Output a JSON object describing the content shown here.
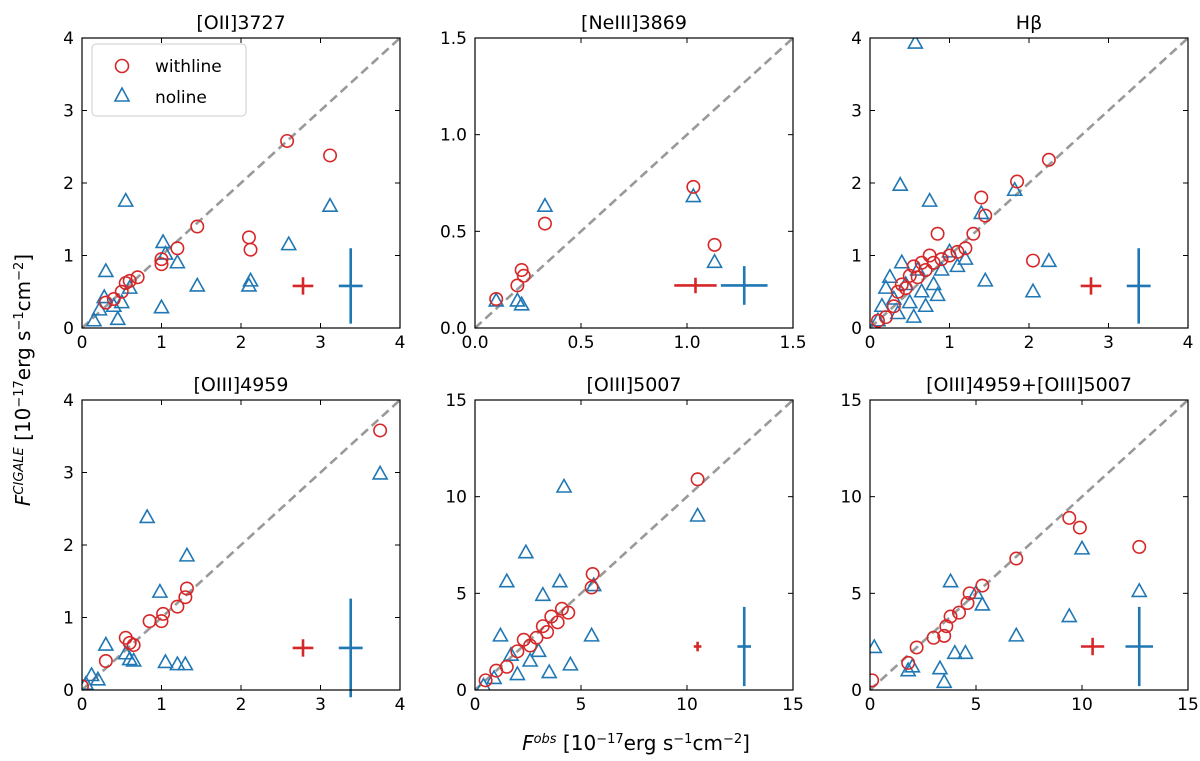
{
  "colors": {
    "withline": "#d62728",
    "noline": "#1f77b4",
    "diagonal": "#999999"
  },
  "chart_data": {
    "type": "scatter",
    "xlabel": {
      "symbol": "F",
      "sup": "obs",
      "rest": " [10",
      "exp": "−17",
      "units_a": "erg s",
      "units_exp1": "−1",
      "units_b": "cm",
      "units_exp2": "−2",
      "close": "]"
    },
    "ylabel": {
      "symbol": "F",
      "sup": "CIGALE",
      "rest": " [10",
      "exp": "−17",
      "units_a": "erg s",
      "units_exp1": "−1",
      "units_b": "cm",
      "units_exp2": "−2",
      "close": "]"
    },
    "legend": {
      "placement": "top-left",
      "entries": [
        {
          "label": "withline",
          "marker": "circle"
        },
        {
          "label": "noline",
          "marker": "triangle"
        }
      ]
    },
    "panels": [
      {
        "title": "[OII]3727",
        "xlim": [
          0,
          4
        ],
        "ylim": [
          0,
          4
        ],
        "xticks": [
          0,
          1,
          2,
          3,
          4
        ],
        "yticks": [
          0,
          1,
          2,
          3,
          4
        ],
        "xtick_labels": [
          "0",
          "1",
          "2",
          "3",
          "4"
        ],
        "ytick_labels": [
          "0",
          "1",
          "2",
          "3",
          "4"
        ],
        "withline": [
          [
            0.3,
            0.35
          ],
          [
            0.4,
            0.4
          ],
          [
            0.5,
            0.5
          ],
          [
            0.55,
            0.62
          ],
          [
            0.6,
            0.65
          ],
          [
            0.7,
            0.7
          ],
          [
            1.0,
            0.95
          ],
          [
            1.0,
            0.88
          ],
          [
            1.2,
            1.1
          ],
          [
            1.45,
            1.4
          ],
          [
            2.1,
            1.25
          ],
          [
            2.12,
            1.08
          ],
          [
            2.58,
            2.58
          ],
          [
            3.12,
            2.38
          ]
        ],
        "noline": [
          [
            0.15,
            0.1
          ],
          [
            0.22,
            0.25
          ],
          [
            0.28,
            0.42
          ],
          [
            0.3,
            0.78
          ],
          [
            0.4,
            0.3
          ],
          [
            0.45,
            0.12
          ],
          [
            0.5,
            0.35
          ],
          [
            0.55,
            1.75
          ],
          [
            0.6,
            0.55
          ],
          [
            1.0,
            0.28
          ],
          [
            1.02,
            1.18
          ],
          [
            1.05,
            1.02
          ],
          [
            1.2,
            0.9
          ],
          [
            1.45,
            0.58
          ],
          [
            2.1,
            0.58
          ],
          [
            2.12,
            0.65
          ],
          [
            2.6,
            1.15
          ],
          [
            3.12,
            1.68
          ]
        ],
        "errbar_withline": {
          "x": 2.78,
          "y": 0.58,
          "xerr": 0.13,
          "yerr": 0.12
        },
        "errbar_noline": {
          "x": 3.38,
          "y": 0.58,
          "xerr": 0.15,
          "yerr": 0.52
        }
      },
      {
        "title": "[NeIII]3869",
        "xlim": [
          0,
          1.5
        ],
        "ylim": [
          0,
          1.5
        ],
        "xticks": [
          0,
          0.5,
          1.0,
          1.5
        ],
        "yticks": [
          0,
          0.5,
          1.0,
          1.5
        ],
        "xtick_labels": [
          "0.0",
          "0.5",
          "1.0",
          "1.5"
        ],
        "ytick_labels": [
          "0.0",
          "0.5",
          "1.0",
          "1.5"
        ],
        "withline": [
          [
            0.1,
            0.15
          ],
          [
            0.2,
            0.22
          ],
          [
            0.22,
            0.3
          ],
          [
            0.23,
            0.27
          ],
          [
            0.33,
            0.54
          ],
          [
            1.03,
            0.73
          ],
          [
            1.13,
            0.43
          ]
        ],
        "noline": [
          [
            0.1,
            0.14
          ],
          [
            0.2,
            0.14
          ],
          [
            0.22,
            0.12
          ],
          [
            0.33,
            0.63
          ],
          [
            1.03,
            0.68
          ],
          [
            1.13,
            0.34
          ]
        ],
        "errbar_withline": {
          "x": 1.04,
          "y": 0.22,
          "xerr": 0.1,
          "yerr": 0.04
        },
        "errbar_noline": {
          "x": 1.27,
          "y": 0.22,
          "xerr": 0.11,
          "yerr": 0.1
        }
      },
      {
        "title": "Hβ",
        "xlim": [
          0,
          4
        ],
        "ylim": [
          0,
          4
        ],
        "xticks": [
          0,
          1,
          2,
          3,
          4
        ],
        "yticks": [
          0,
          1,
          2,
          3,
          4
        ],
        "xtick_labels": [
          "0",
          "1",
          "2",
          "3",
          "4"
        ],
        "ytick_labels": [
          "0",
          "1",
          "2",
          "3",
          "4"
        ],
        "withline": [
          [
            0.1,
            0.1
          ],
          [
            0.2,
            0.15
          ],
          [
            0.3,
            0.3
          ],
          [
            0.35,
            0.5
          ],
          [
            0.4,
            0.6
          ],
          [
            0.45,
            0.55
          ],
          [
            0.5,
            0.72
          ],
          [
            0.55,
            0.85
          ],
          [
            0.6,
            0.7
          ],
          [
            0.65,
            0.9
          ],
          [
            0.7,
            0.8
          ],
          [
            0.75,
            1.0
          ],
          [
            0.8,
            0.9
          ],
          [
            0.85,
            1.3
          ],
          [
            0.9,
            0.95
          ],
          [
            1.0,
            1.0
          ],
          [
            1.1,
            1.05
          ],
          [
            1.2,
            1.1
          ],
          [
            1.3,
            1.3
          ],
          [
            1.4,
            1.8
          ],
          [
            1.45,
            1.55
          ],
          [
            1.85,
            2.02
          ],
          [
            2.05,
            0.93
          ],
          [
            2.25,
            2.32
          ]
        ],
        "noline": [
          [
            0.1,
            0.1
          ],
          [
            0.15,
            0.3
          ],
          [
            0.2,
            0.55
          ],
          [
            0.25,
            0.7
          ],
          [
            0.3,
            0.4
          ],
          [
            0.35,
            0.2
          ],
          [
            0.38,
            1.97
          ],
          [
            0.4,
            0.9
          ],
          [
            0.45,
            0.6
          ],
          [
            0.5,
            0.35
          ],
          [
            0.55,
            0.15
          ],
          [
            0.57,
            3.93
          ],
          [
            0.6,
            0.8
          ],
          [
            0.65,
            0.5
          ],
          [
            0.7,
            0.3
          ],
          [
            0.75,
            1.75
          ],
          [
            0.8,
            0.6
          ],
          [
            0.85,
            0.45
          ],
          [
            0.9,
            0.8
          ],
          [
            1.0,
            1.05
          ],
          [
            1.1,
            0.85
          ],
          [
            1.2,
            0.95
          ],
          [
            1.4,
            1.58
          ],
          [
            1.45,
            0.65
          ],
          [
            1.82,
            1.9
          ],
          [
            2.05,
            0.5
          ],
          [
            2.25,
            0.92
          ]
        ],
        "errbar_withline": {
          "x": 2.78,
          "y": 0.58,
          "xerr": 0.13,
          "yerr": 0.12
        },
        "errbar_noline": {
          "x": 3.38,
          "y": 0.58,
          "xerr": 0.15,
          "yerr": 0.52
        }
      },
      {
        "title": "[OIII]4959",
        "xlim": [
          0,
          4
        ],
        "ylim": [
          0,
          4
        ],
        "xticks": [
          0,
          1,
          2,
          3,
          4
        ],
        "yticks": [
          0,
          1,
          2,
          3,
          4
        ],
        "xtick_labels": [
          "0",
          "1",
          "2",
          "3",
          "4"
        ],
        "ytick_labels": [
          "0",
          "1",
          "2",
          "3",
          "4"
        ],
        "withline": [
          [
            0.0,
            0.05
          ],
          [
            0.3,
            0.4
          ],
          [
            0.55,
            0.72
          ],
          [
            0.6,
            0.65
          ],
          [
            0.65,
            0.62
          ],
          [
            0.85,
            0.95
          ],
          [
            1.0,
            0.95
          ],
          [
            1.02,
            1.05
          ],
          [
            1.2,
            1.15
          ],
          [
            1.3,
            1.28
          ],
          [
            1.32,
            1.4
          ],
          [
            3.75,
            3.58
          ]
        ],
        "noline": [
          [
            0.05,
            0.08
          ],
          [
            0.12,
            0.2
          ],
          [
            0.2,
            0.14
          ],
          [
            0.3,
            0.62
          ],
          [
            0.55,
            0.5
          ],
          [
            0.6,
            0.42
          ],
          [
            0.65,
            0.4
          ],
          [
            0.82,
            2.38
          ],
          [
            0.98,
            1.35
          ],
          [
            1.05,
            0.38
          ],
          [
            1.2,
            0.35
          ],
          [
            1.3,
            0.35
          ],
          [
            1.32,
            1.85
          ],
          [
            3.75,
            2.98
          ]
        ],
        "errbar_withline": {
          "x": 2.78,
          "y": 0.58,
          "xerr": 0.13,
          "yerr": 0.12
        },
        "errbar_noline": {
          "x": 3.38,
          "y": 0.58,
          "xerr": 0.15,
          "yerr": 0.68
        }
      },
      {
        "title": "[OIII]5007",
        "xlim": [
          0,
          15
        ],
        "ylim": [
          0,
          15
        ],
        "xticks": [
          0,
          5,
          10,
          15
        ],
        "yticks": [
          0,
          5,
          10,
          15
        ],
        "xtick_labels": [
          "0",
          "5",
          "10",
          "15"
        ],
        "ytick_labels": [
          "0",
          "5",
          "10",
          "15"
        ],
        "withline": [
          [
            0.5,
            0.5
          ],
          [
            1.0,
            1.0
          ],
          [
            1.5,
            1.2
          ],
          [
            2.0,
            2.0
          ],
          [
            2.3,
            2.6
          ],
          [
            2.6,
            2.3
          ],
          [
            2.9,
            2.7
          ],
          [
            3.2,
            3.3
          ],
          [
            3.4,
            3.0
          ],
          [
            3.6,
            3.8
          ],
          [
            3.9,
            3.5
          ],
          [
            4.1,
            4.2
          ],
          [
            4.4,
            4.0
          ],
          [
            5.5,
            5.3
          ],
          [
            5.55,
            6.0
          ],
          [
            10.5,
            10.9
          ]
        ],
        "noline": [
          [
            0.4,
            0.2
          ],
          [
            0.9,
            0.6
          ],
          [
            1.2,
            2.8
          ],
          [
            1.5,
            5.6
          ],
          [
            1.7,
            1.8
          ],
          [
            2.0,
            0.8
          ],
          [
            2.4,
            7.1
          ],
          [
            2.6,
            1.5
          ],
          [
            3.0,
            2.0
          ],
          [
            3.2,
            4.9
          ],
          [
            3.5,
            0.9
          ],
          [
            4.0,
            5.6
          ],
          [
            4.2,
            10.5
          ],
          [
            4.5,
            1.3
          ],
          [
            5.5,
            2.8
          ],
          [
            5.6,
            5.4
          ],
          [
            10.5,
            9.0
          ]
        ],
        "errbar_withline": {
          "x": 10.5,
          "y": 2.25,
          "xerr": 0.18,
          "yerr": 0.25
        },
        "errbar_noline": {
          "x": 12.7,
          "y": 2.25,
          "xerr": 0.32,
          "yerr": 2.05
        }
      },
      {
        "title": "[OIII]4959+[OIII]5007",
        "xlim": [
          0,
          15
        ],
        "ylim": [
          0,
          15
        ],
        "xticks": [
          0,
          5,
          10,
          15
        ],
        "yticks": [
          0,
          5,
          10,
          15
        ],
        "xtick_labels": [
          "0",
          "5",
          "10",
          "15"
        ],
        "ytick_labels": [
          "0",
          "5",
          "10",
          "15"
        ],
        "withline": [
          [
            0.1,
            0.5
          ],
          [
            1.8,
            1.4
          ],
          [
            2.2,
            2.2
          ],
          [
            3.0,
            2.7
          ],
          [
            3.5,
            2.8
          ],
          [
            3.6,
            3.3
          ],
          [
            3.8,
            3.8
          ],
          [
            4.2,
            4.0
          ],
          [
            4.6,
            4.5
          ],
          [
            4.7,
            5.0
          ],
          [
            5.3,
            5.4
          ],
          [
            6.9,
            6.8
          ],
          [
            9.4,
            8.9
          ],
          [
            9.9,
            8.4
          ],
          [
            12.7,
            7.4
          ]
        ],
        "noline": [
          [
            0.2,
            2.2
          ],
          [
            1.8,
            1.0
          ],
          [
            2.0,
            1.2
          ],
          [
            3.3,
            1.1
          ],
          [
            3.5,
            0.4
          ],
          [
            3.8,
            5.6
          ],
          [
            4.0,
            1.9
          ],
          [
            4.5,
            1.9
          ],
          [
            5.0,
            5.0
          ],
          [
            5.3,
            4.4
          ],
          [
            6.9,
            2.8
          ],
          [
            9.4,
            3.8
          ],
          [
            10.0,
            7.3
          ],
          [
            12.7,
            5.1
          ]
        ],
        "errbar_withline": {
          "x": 10.5,
          "y": 2.25,
          "xerr": 0.55,
          "yerr": 0.45
        },
        "errbar_noline": {
          "x": 12.7,
          "y": 2.25,
          "xerr": 0.65,
          "yerr": 2.05
        }
      }
    ]
  }
}
